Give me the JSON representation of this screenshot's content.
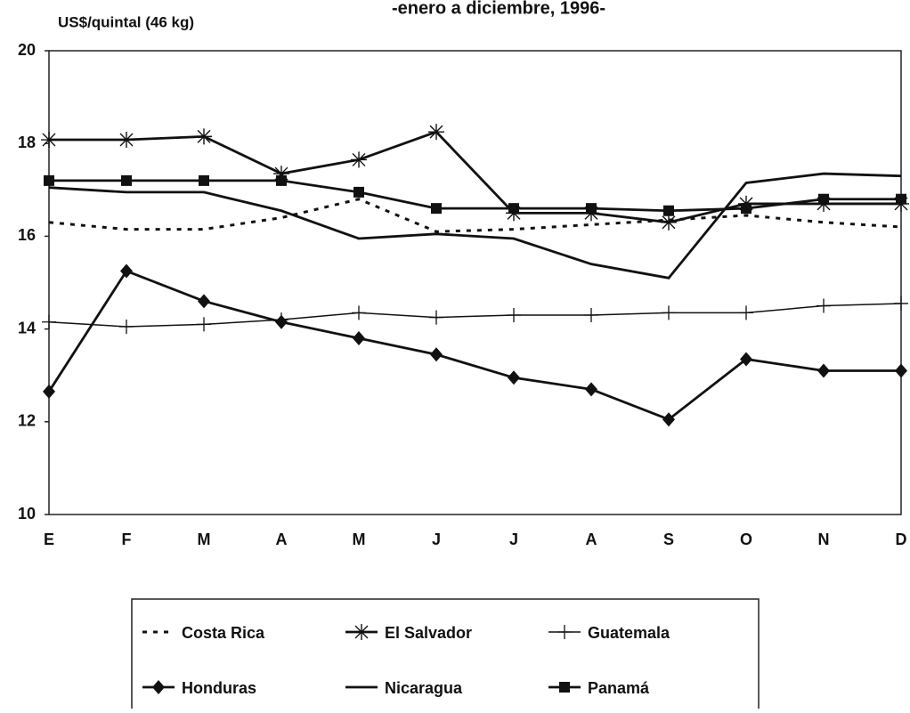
{
  "chart_data": {
    "type": "line",
    "title": "-enero a diciembre, 1996-",
    "y_axis_label": "US$/quintal (46 kg)",
    "categories": [
      "E",
      "F",
      "M",
      "A",
      "M",
      "J",
      "J",
      "A",
      "S",
      "O",
      "N",
      "D"
    ],
    "ylim": [
      10,
      20
    ],
    "yticks": [
      10,
      12,
      14,
      16,
      18,
      20
    ],
    "grid": false,
    "series": [
      {
        "name": "Costa Rica",
        "color": "#111111",
        "marker": "none",
        "dash": "dotted",
        "values": [
          16.3,
          16.15,
          16.15,
          16.4,
          16.8,
          16.1,
          16.15,
          16.25,
          16.35,
          16.45,
          16.3,
          16.2
        ]
      },
      {
        "name": "El Salvador",
        "color": "#111111",
        "marker": "asterisk",
        "dash": "solid",
        "values": [
          18.08,
          18.08,
          18.15,
          17.35,
          17.65,
          18.25,
          16.5,
          16.5,
          16.3,
          16.7,
          16.7,
          16.7
        ]
      },
      {
        "name": "Guatemala",
        "color": "#111111",
        "marker": "plus",
        "dash": "solid",
        "values": [
          14.15,
          14.05,
          14.1,
          14.2,
          14.35,
          14.25,
          14.3,
          14.3,
          14.35,
          14.35,
          14.5,
          14.55
        ]
      },
      {
        "name": "Honduras",
        "color": "#111111",
        "marker": "diamond",
        "dash": "solid",
        "values": [
          12.65,
          15.25,
          14.6,
          14.15,
          13.8,
          13.45,
          12.95,
          12.7,
          12.05,
          13.35,
          13.1,
          13.1
        ]
      },
      {
        "name": "Nicaragua",
        "color": "#111111",
        "marker": "none",
        "dash": "solid",
        "values": [
          17.05,
          16.95,
          16.95,
          16.55,
          15.95,
          16.05,
          15.95,
          15.4,
          15.1,
          17.15,
          17.35,
          17.3
        ]
      },
      {
        "name": "Panamá",
        "color": "#111111",
        "marker": "square",
        "dash": "solid",
        "values": [
          17.2,
          17.2,
          17.2,
          17.2,
          16.95,
          16.6,
          16.6,
          16.6,
          16.55,
          16.6,
          16.8,
          16.8
        ]
      }
    ]
  }
}
